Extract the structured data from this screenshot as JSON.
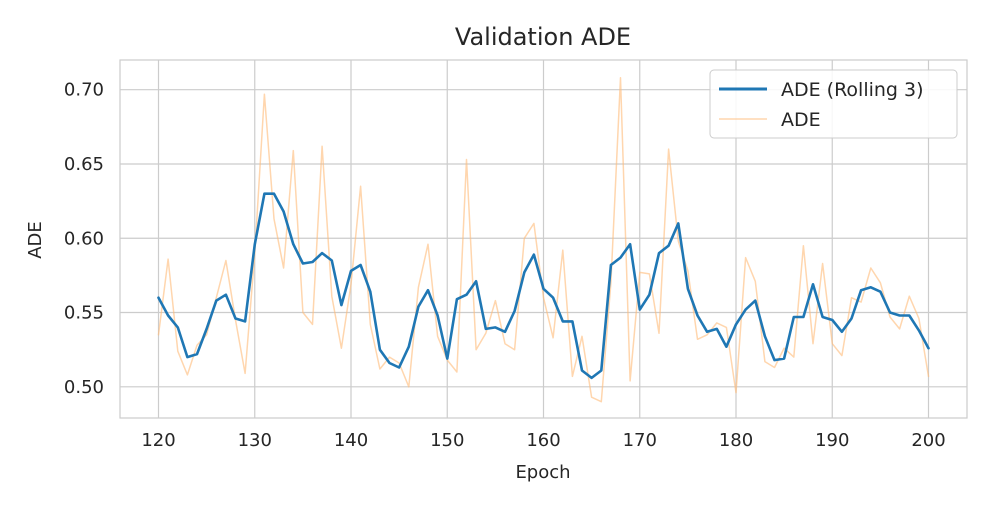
{
  "chart_data": {
    "type": "line",
    "title": "Validation ADE",
    "xlabel": "Epoch",
    "ylabel": "ADE",
    "xlim": [
      116,
      204
    ],
    "ylim": [
      0.479,
      0.72
    ],
    "xticks": [
      120,
      130,
      140,
      150,
      160,
      170,
      180,
      190,
      200
    ],
    "yticks": [
      0.5,
      0.55,
      0.6,
      0.65,
      0.7
    ],
    "ytick_labels": [
      "0.50",
      "0.55",
      "0.60",
      "0.65",
      "0.70"
    ],
    "grid": true,
    "legend_position": "top-right",
    "x": [
      120,
      121,
      122,
      123,
      124,
      125,
      126,
      127,
      128,
      129,
      130,
      131,
      132,
      133,
      134,
      135,
      136,
      137,
      138,
      139,
      140,
      141,
      142,
      143,
      144,
      145,
      146,
      147,
      148,
      149,
      150,
      151,
      152,
      153,
      154,
      155,
      156,
      157,
      158,
      159,
      160,
      161,
      162,
      163,
      164,
      165,
      166,
      167,
      168,
      169,
      170,
      171,
      172,
      173,
      174,
      175,
      176,
      177,
      178,
      179,
      180,
      181,
      182,
      183,
      184,
      185,
      186,
      187,
      188,
      189,
      190,
      191,
      192,
      193,
      194,
      195,
      196,
      197,
      198,
      199,
      200
    ],
    "series": [
      {
        "name": "ADE (Rolling 3)",
        "color": "#1f77b4",
        "values": [
          0.56,
          0.548,
          0.54,
          0.52,
          0.522,
          0.539,
          0.558,
          0.562,
          0.546,
          0.544,
          0.596,
          0.63,
          0.63,
          0.618,
          0.596,
          0.583,
          0.584,
          0.59,
          0.585,
          0.555,
          0.578,
          0.582,
          0.564,
          0.525,
          0.516,
          0.513,
          0.527,
          0.554,
          0.565,
          0.548,
          0.519,
          0.559,
          0.562,
          0.571,
          0.539,
          0.54,
          0.537,
          0.551,
          0.577,
          0.589,
          0.566,
          0.56,
          0.544,
          0.544,
          0.511,
          0.506,
          0.511,
          0.582,
          0.587,
          0.596,
          0.552,
          0.562,
          0.59,
          0.595,
          0.61,
          0.566,
          0.548,
          0.537,
          0.539,
          0.527,
          0.542,
          0.552,
          0.558,
          0.534,
          0.518,
          0.519,
          0.547,
          0.547,
          0.569,
          0.547,
          0.545,
          0.537,
          0.546,
          0.565,
          0.567,
          0.564,
          0.55,
          0.548,
          0.548,
          0.538,
          0.526
        ]
      },
      {
        "name": "ADE",
        "color": "#ffbb78",
        "values": [
          0.535,
          0.586,
          0.524,
          0.508,
          0.528,
          0.535,
          0.56,
          0.585,
          0.545,
          0.509,
          0.59,
          0.697,
          0.613,
          0.58,
          0.659,
          0.55,
          0.542,
          0.662,
          0.561,
          0.526,
          0.569,
          0.635,
          0.542,
          0.512,
          0.52,
          0.516,
          0.5,
          0.567,
          0.596,
          0.534,
          0.518,
          0.51,
          0.653,
          0.525,
          0.536,
          0.558,
          0.529,
          0.525,
          0.6,
          0.61,
          0.56,
          0.533,
          0.592,
          0.507,
          0.534,
          0.493,
          0.49,
          0.57,
          0.708,
          0.504,
          0.577,
          0.576,
          0.536,
          0.66,
          0.598,
          0.578,
          0.532,
          0.535,
          0.543,
          0.54,
          0.496,
          0.587,
          0.571,
          0.517,
          0.513,
          0.526,
          0.52,
          0.595,
          0.529,
          0.583,
          0.529,
          0.521,
          0.56,
          0.557,
          0.58,
          0.57,
          0.547,
          0.539,
          0.561,
          0.546,
          0.507
        ]
      }
    ]
  }
}
